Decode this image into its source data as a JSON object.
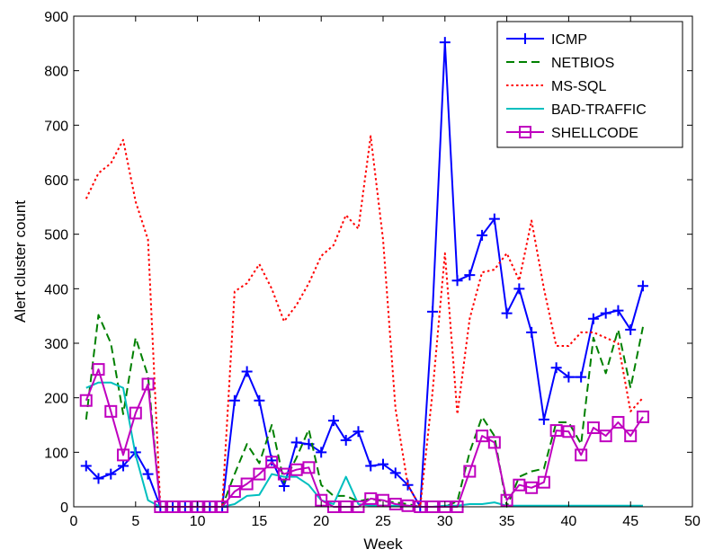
{
  "chart_data": {
    "type": "line",
    "xlabel": "Week",
    "ylabel": "Alert cluster count",
    "xlim": [
      0,
      50
    ],
    "ylim": [
      0,
      900
    ],
    "xticks": [
      0,
      5,
      10,
      15,
      20,
      25,
      30,
      35,
      40,
      45,
      50
    ],
    "yticks": [
      0,
      100,
      200,
      300,
      400,
      500,
      600,
      700,
      800,
      900
    ],
    "legend_position": "top-right",
    "grid": false,
    "x": [
      1,
      2,
      3,
      4,
      5,
      6,
      7,
      8,
      9,
      10,
      11,
      12,
      13,
      14,
      15,
      16,
      17,
      18,
      19,
      20,
      21,
      22,
      23,
      24,
      25,
      26,
      27,
      28,
      29,
      30,
      31,
      32,
      33,
      34,
      35,
      36,
      37,
      38,
      39,
      40,
      41,
      42,
      43,
      44,
      45,
      46
    ],
    "series": [
      {
        "name": "ICMP",
        "color": "#0000ff",
        "style": "solid",
        "marker": "plus",
        "values": [
          75,
          52,
          60,
          75,
          100,
          60,
          0,
          0,
          0,
          0,
          0,
          0,
          195,
          248,
          195,
          85,
          38,
          118,
          115,
          100,
          158,
          122,
          138,
          75,
          78,
          62,
          40,
          0,
          358,
          852,
          415,
          425,
          498,
          528,
          355,
          400,
          320,
          160,
          255,
          238,
          238,
          345,
          355,
          360,
          325,
          405
        ]
      },
      {
        "name": "NETBIOS",
        "color": "#008000",
        "style": "dashed",
        "marker": "none",
        "values": [
          160,
          352,
          300,
          170,
          310,
          240,
          0,
          0,
          0,
          0,
          0,
          0,
          60,
          115,
          80,
          150,
          45,
          90,
          142,
          40,
          20,
          20,
          10,
          15,
          10,
          8,
          5,
          0,
          0,
          0,
          10,
          100,
          165,
          130,
          0,
          55,
          65,
          70,
          155,
          155,
          115,
          310,
          245,
          325,
          218,
          330
        ]
      },
      {
        "name": "MS-SQL",
        "color": "#ff0000",
        "style": "dotted",
        "marker": "none",
        "values": [
          565,
          612,
          630,
          673,
          560,
          490,
          0,
          0,
          0,
          0,
          0,
          0,
          395,
          410,
          445,
          400,
          340,
          370,
          410,
          460,
          480,
          535,
          510,
          680,
          490,
          180,
          40,
          0,
          210,
          465,
          170,
          345,
          430,
          435,
          465,
          415,
          525,
          400,
          295,
          295,
          320,
          320,
          310,
          300,
          175,
          200
        ]
      },
      {
        "name": "BAD-TRAFFIC",
        "color": "#00bfbf",
        "style": "solid",
        "marker": "none",
        "values": [
          218,
          228,
          228,
          218,
          95,
          12,
          0,
          0,
          0,
          0,
          0,
          0,
          5,
          20,
          22,
          60,
          55,
          55,
          40,
          12,
          5,
          55,
          5,
          2,
          2,
          2,
          2,
          0,
          0,
          2,
          2,
          5,
          5,
          8,
          2,
          2,
          2,
          2,
          2,
          2,
          2,
          2,
          2,
          2,
          2,
          2
        ]
      },
      {
        "name": "SHELLCODE",
        "color": "#bf00bf",
        "style": "solid",
        "marker": "square",
        "values": [
          195,
          252,
          175,
          95,
          172,
          225,
          0,
          0,
          0,
          0,
          0,
          0,
          28,
          42,
          60,
          82,
          60,
          68,
          72,
          12,
          0,
          0,
          0,
          15,
          12,
          5,
          2,
          0,
          0,
          0,
          0,
          65,
          130,
          118,
          12,
          40,
          35,
          45,
          140,
          138,
          95,
          145,
          130,
          155,
          130,
          165
        ]
      }
    ]
  }
}
